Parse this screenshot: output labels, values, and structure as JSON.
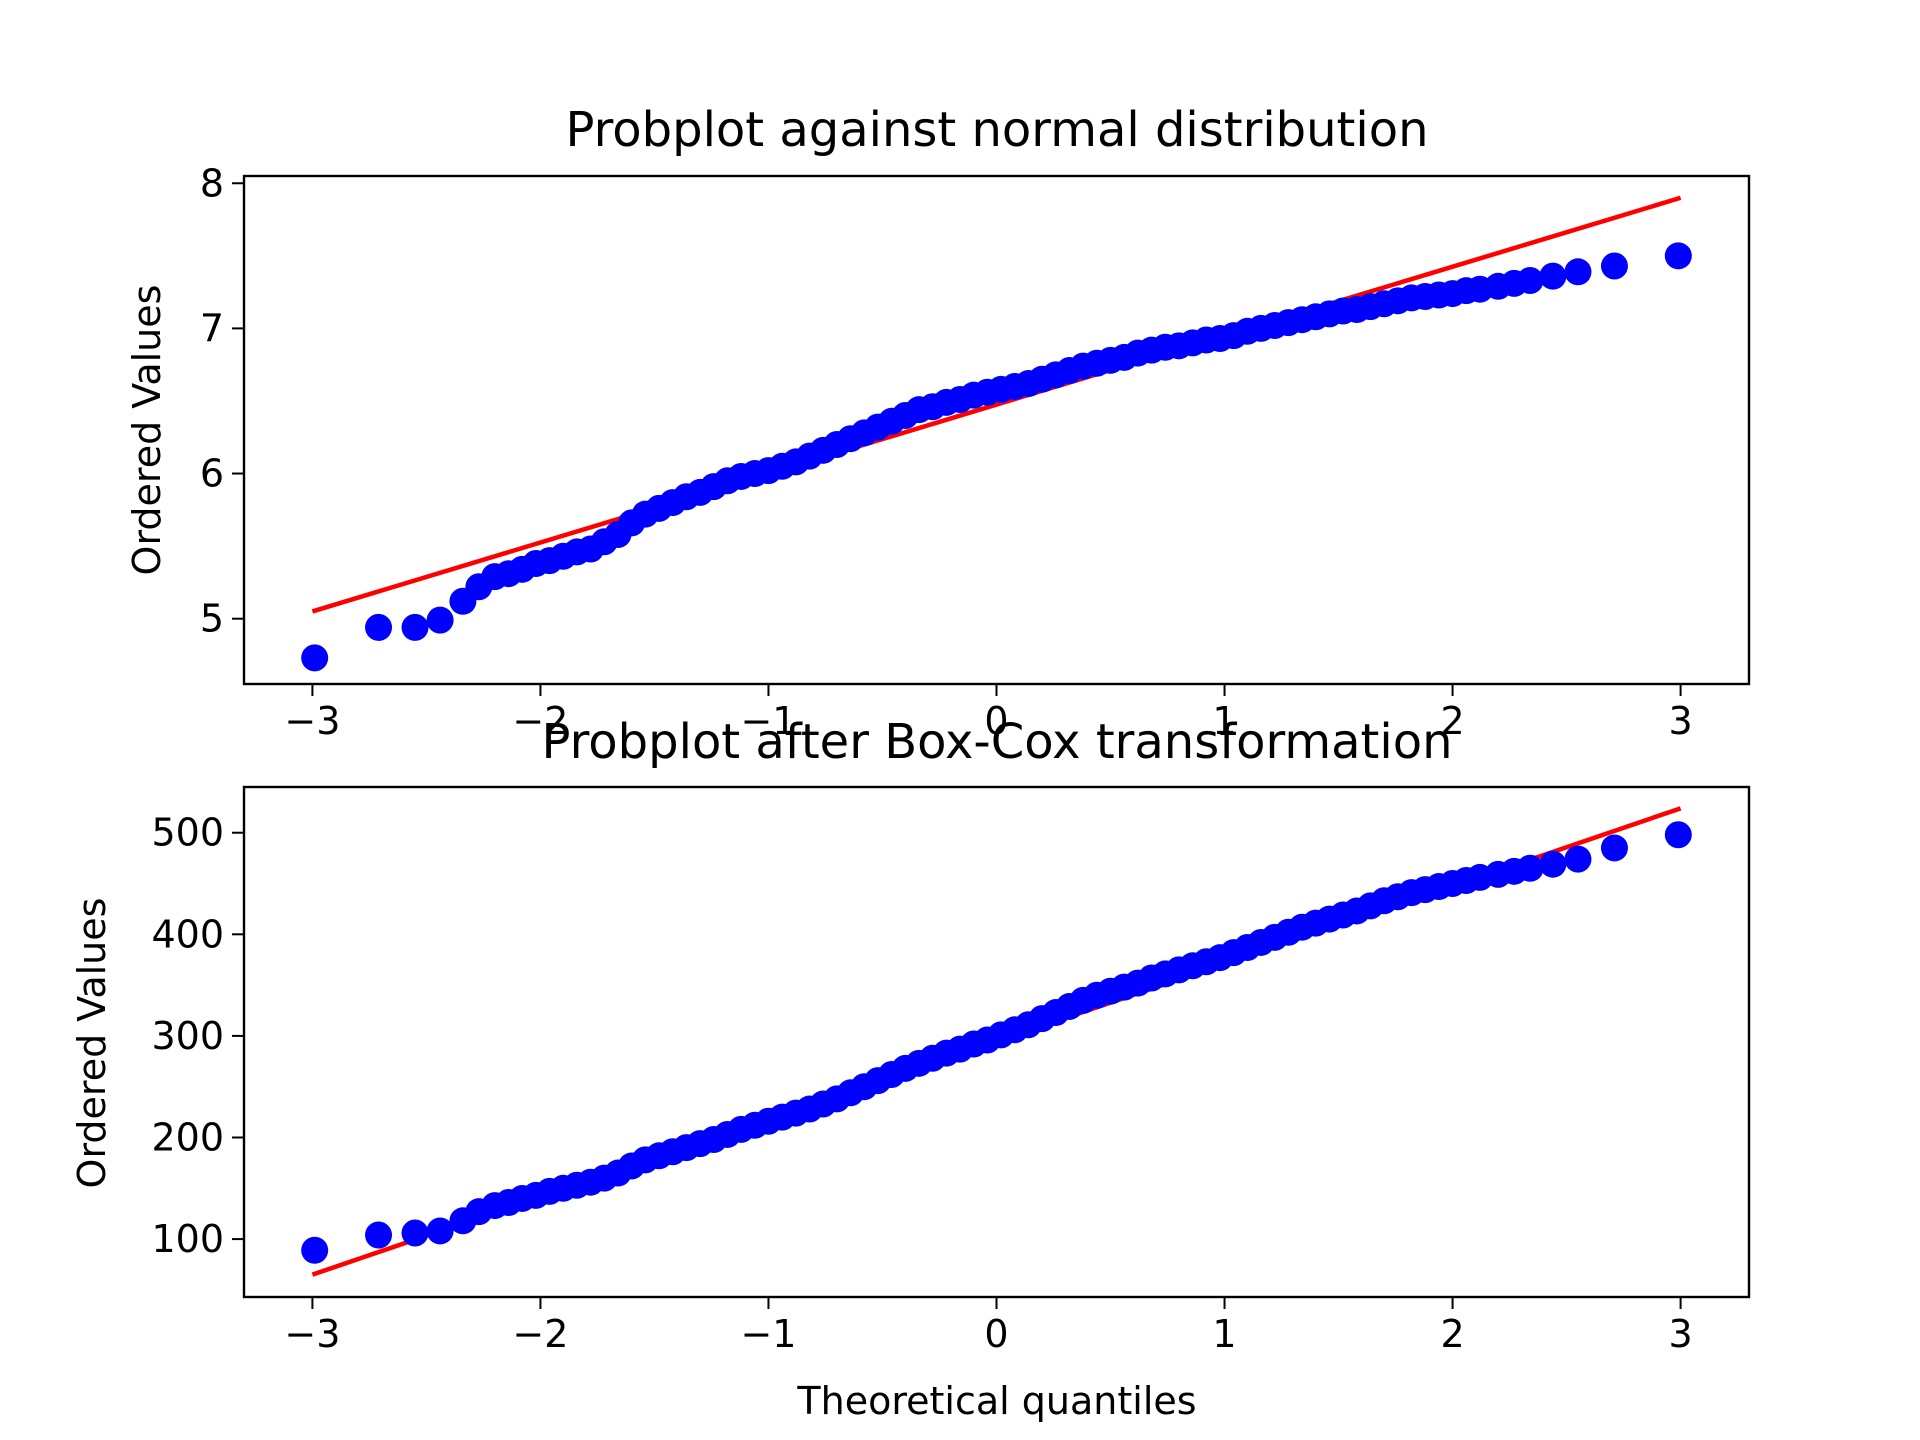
{
  "chart_data": [
    {
      "type": "scatter",
      "title": "Probplot against normal distribution",
      "xlabel": "",
      "ylabel": "Ordered Values",
      "xlim": [
        -3.3,
        3.3
      ],
      "ylim": [
        4.55,
        8.05
      ],
      "xticks": [
        -3,
        -2,
        -1,
        0,
        1,
        2,
        3
      ],
      "xtick_labels": [
        "−3",
        "−2",
        "−1",
        "0",
        "1",
        "2",
        "3"
      ],
      "yticks": [
        5,
        6,
        7,
        8
      ],
      "ytick_labels": [
        "5",
        "6",
        "7",
        "8"
      ],
      "grid": false,
      "marker_color": "#0000ff",
      "line_color": "#ff0000",
      "fit_line": {
        "x": [
          -3.0,
          3.0
        ],
        "y": [
          5.05,
          7.9
        ]
      },
      "points": {
        "x": [
          -2.99,
          -2.71,
          -2.55,
          -2.44,
          -2.34,
          -2.27,
          -2.2,
          -2.14,
          -2.08,
          -2.02,
          -1.96,
          -1.9,
          -1.84,
          -1.78,
          -1.72,
          -1.66,
          -1.6,
          -1.54,
          -1.48,
          -1.42,
          -1.36,
          -1.3,
          -1.24,
          -1.18,
          -1.12,
          -1.06,
          -1.0,
          -0.94,
          -0.88,
          -0.82,
          -0.76,
          -0.7,
          -0.64,
          -0.58,
          -0.52,
          -0.46,
          -0.4,
          -0.34,
          -0.28,
          -0.22,
          -0.16,
          -0.1,
          -0.04,
          0.02,
          0.08,
          0.14,
          0.2,
          0.26,
          0.32,
          0.38,
          0.44,
          0.5,
          0.56,
          0.62,
          0.68,
          0.74,
          0.8,
          0.86,
          0.92,
          0.98,
          1.04,
          1.1,
          1.16,
          1.22,
          1.28,
          1.34,
          1.4,
          1.46,
          1.52,
          1.58,
          1.64,
          1.7,
          1.76,
          1.82,
          1.88,
          1.94,
          2.0,
          2.06,
          2.12,
          2.2,
          2.27,
          2.34,
          2.44,
          2.55,
          2.71,
          2.99
        ],
        "y": [
          4.73,
          4.94,
          4.94,
          4.99,
          5.12,
          5.22,
          5.29,
          5.31,
          5.34,
          5.38,
          5.4,
          5.43,
          5.46,
          5.48,
          5.53,
          5.58,
          5.66,
          5.72,
          5.76,
          5.8,
          5.84,
          5.87,
          5.91,
          5.95,
          5.98,
          6.0,
          6.02,
          6.05,
          6.08,
          6.12,
          6.16,
          6.2,
          6.24,
          6.28,
          6.32,
          6.36,
          6.4,
          6.44,
          6.46,
          6.49,
          6.51,
          6.54,
          6.56,
          6.58,
          6.6,
          6.62,
          6.65,
          6.68,
          6.71,
          6.74,
          6.76,
          6.78,
          6.8,
          6.83,
          6.85,
          6.87,
          6.88,
          6.9,
          6.92,
          6.93,
          6.95,
          6.98,
          7.0,
          7.02,
          7.04,
          7.06,
          7.08,
          7.1,
          7.12,
          7.13,
          7.15,
          7.17,
          7.19,
          7.21,
          7.22,
          7.23,
          7.24,
          7.26,
          7.27,
          7.29,
          7.31,
          7.33,
          7.36,
          7.39,
          7.43,
          7.5
        ]
      }
    },
    {
      "type": "scatter",
      "title": "Probplot after Box-Cox transformation",
      "xlabel": "Theoretical quantiles",
      "ylabel": "Ordered Values",
      "xlim": [
        -3.3,
        3.3
      ],
      "ylim": [
        43,
        545
      ],
      "xticks": [
        -3,
        -2,
        -1,
        0,
        1,
        2,
        3
      ],
      "xtick_labels": [
        "−3",
        "−2",
        "−1",
        "0",
        "1",
        "2",
        "3"
      ],
      "yticks": [
        100,
        200,
        300,
        400,
        500
      ],
      "ytick_labels": [
        "100",
        "200",
        "300",
        "400",
        "500"
      ],
      "grid": false,
      "marker_color": "#0000ff",
      "line_color": "#ff0000",
      "fit_line": {
        "x": [
          -3.0,
          3.0
        ],
        "y": [
          65,
          524
        ]
      },
      "points": {
        "x": [
          -2.99,
          -2.71,
          -2.55,
          -2.44,
          -2.34,
          -2.27,
          -2.2,
          -2.14,
          -2.08,
          -2.02,
          -1.96,
          -1.9,
          -1.84,
          -1.78,
          -1.72,
          -1.66,
          -1.6,
          -1.54,
          -1.48,
          -1.42,
          -1.36,
          -1.3,
          -1.24,
          -1.18,
          -1.12,
          -1.06,
          -1.0,
          -0.94,
          -0.88,
          -0.82,
          -0.76,
          -0.7,
          -0.64,
          -0.58,
          -0.52,
          -0.46,
          -0.4,
          -0.34,
          -0.28,
          -0.22,
          -0.16,
          -0.1,
          -0.04,
          0.02,
          0.08,
          0.14,
          0.2,
          0.26,
          0.32,
          0.38,
          0.44,
          0.5,
          0.56,
          0.62,
          0.68,
          0.74,
          0.8,
          0.86,
          0.92,
          0.98,
          1.04,
          1.1,
          1.16,
          1.22,
          1.28,
          1.34,
          1.4,
          1.46,
          1.52,
          1.58,
          1.64,
          1.7,
          1.76,
          1.82,
          1.88,
          1.94,
          2.0,
          2.06,
          2.12,
          2.2,
          2.27,
          2.34,
          2.44,
          2.55,
          2.71,
          2.99
        ],
        "y": [
          89,
          104,
          106,
          108,
          118,
          127,
          133,
          136,
          140,
          143,
          147,
          150,
          153,
          156,
          160,
          165,
          172,
          178,
          182,
          186,
          190,
          194,
          198,
          203,
          208,
          212,
          216,
          220,
          224,
          228,
          233,
          238,
          244,
          250,
          256,
          262,
          268,
          273,
          278,
          283,
          287,
          292,
          296,
          301,
          306,
          311,
          317,
          323,
          329,
          335,
          340,
          344,
          348,
          352,
          357,
          361,
          365,
          369,
          373,
          377,
          382,
          387,
          392,
          397,
          402,
          407,
          411,
          415,
          419,
          423,
          428,
          433,
          437,
          441,
          444,
          447,
          450,
          453,
          456,
          459,
          462,
          465,
          469,
          474,
          485,
          498
        ]
      }
    }
  ]
}
